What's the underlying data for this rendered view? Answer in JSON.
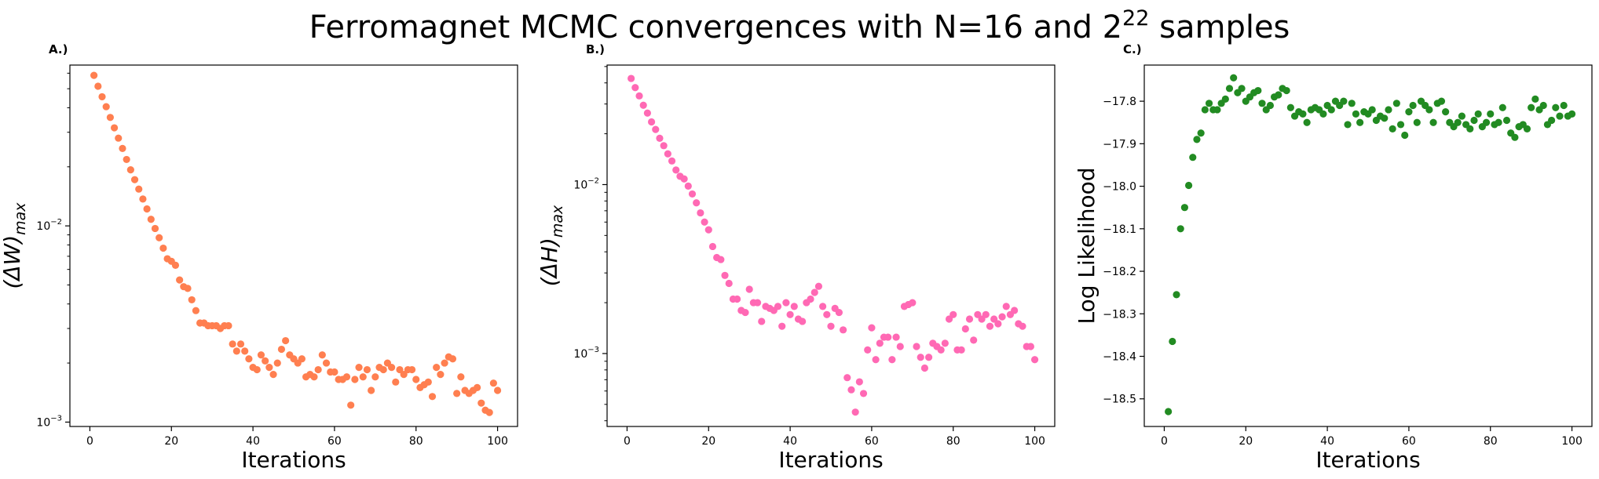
{
  "title": {
    "prefix": "Ferromagnet MCMC convergences with N=16 and 2",
    "sup": "22",
    "suffix": " samples"
  },
  "chart_data": [
    {
      "id": "A",
      "type": "scatter",
      "panel_label": "A.)",
      "xlabel": "Iterations",
      "ylabel_base": "(ΔW)",
      "ylabel_sub": "max",
      "yscale": "log",
      "xlim": [
        -4.9,
        104.9
      ],
      "ylim": [
        0.00095,
        0.066
      ],
      "xticks": [
        0,
        20,
        40,
        60,
        80,
        100
      ],
      "yticks": [
        {
          "value": 0.001,
          "base": "10",
          "exp": "−3"
        },
        {
          "value": 0.01,
          "base": "10",
          "exp": "−2"
        }
      ],
      "color": "#ff7f50",
      "x": [
        1,
        2,
        3,
        4,
        5,
        6,
        7,
        8,
        9,
        10,
        11,
        12,
        13,
        14,
        15,
        16,
        17,
        18,
        19,
        20,
        21,
        22,
        23,
        24,
        25,
        26,
        27,
        28,
        29,
        30,
        31,
        32,
        33,
        34,
        35,
        36,
        37,
        38,
        39,
        40,
        41,
        42,
        43,
        44,
        45,
        46,
        47,
        48,
        49,
        50,
        51,
        52,
        53,
        54,
        55,
        56,
        57,
        58,
        59,
        60,
        61,
        62,
        63,
        64,
        65,
        66,
        67,
        68,
        69,
        70,
        71,
        72,
        73,
        74,
        75,
        76,
        77,
        78,
        79,
        80,
        81,
        82,
        83,
        84,
        85,
        86,
        87,
        88,
        89,
        90,
        91,
        92,
        93,
        94,
        95,
        96,
        97,
        98,
        99,
        100
      ],
      "y": [
        0.0585,
        0.0515,
        0.0455,
        0.0405,
        0.0357,
        0.0316,
        0.028,
        0.0248,
        0.0218,
        0.0193,
        0.0172,
        0.0154,
        0.0137,
        0.0122,
        0.0108,
        0.0097,
        0.0087,
        0.0077,
        0.0068,
        0.0066,
        0.0063,
        0.0053,
        0.0049,
        0.0048,
        0.0042,
        0.0037,
        0.0032,
        0.0032,
        0.0031,
        0.0031,
        0.0031,
        0.003,
        0.0031,
        0.0031,
        0.0025,
        0.0023,
        0.0025,
        0.0023,
        0.0021,
        0.0019,
        0.00185,
        0.0022,
        0.00205,
        0.0019,
        0.00175,
        0.002,
        0.00235,
        0.0026,
        0.0022,
        0.0021,
        0.002,
        0.0021,
        0.0017,
        0.00175,
        0.0017,
        0.00185,
        0.0022,
        0.002,
        0.0018,
        0.0018,
        0.00165,
        0.00165,
        0.0017,
        0.00122,
        0.00165,
        0.0019,
        0.0017,
        0.00185,
        0.00145,
        0.0017,
        0.0019,
        0.00185,
        0.002,
        0.0019,
        0.0016,
        0.00185,
        0.00175,
        0.00185,
        0.00185,
        0.00165,
        0.0015,
        0.00155,
        0.0016,
        0.00135,
        0.0019,
        0.00175,
        0.002,
        0.00215,
        0.0021,
        0.0014,
        0.0017,
        0.00145,
        0.0014,
        0.00145,
        0.0015,
        0.00125,
        0.00115,
        0.00112,
        0.00158,
        0.00145
      ]
    },
    {
      "id": "B",
      "type": "scatter",
      "panel_label": "B.)",
      "xlabel": "Iterations",
      "ylabel_base": "(ΔH)",
      "ylabel_sub": "max",
      "yscale": "log",
      "xlim": [
        -4.9,
        104.9
      ],
      "ylim": [
        0.00037,
        0.051
      ],
      "xticks": [
        0,
        20,
        40,
        60,
        80,
        100
      ],
      "yticks": [
        {
          "value": 0.001,
          "base": "10",
          "exp": "−3"
        },
        {
          "value": 0.01,
          "base": "10",
          "exp": "−2"
        }
      ],
      "color": "#ff69b4",
      "x": [
        1,
        2,
        3,
        4,
        5,
        6,
        7,
        8,
        9,
        10,
        11,
        12,
        13,
        14,
        15,
        16,
        17,
        18,
        19,
        20,
        21,
        22,
        23,
        24,
        25,
        26,
        27,
        28,
        29,
        30,
        31,
        32,
        33,
        34,
        35,
        36,
        37,
        38,
        39,
        40,
        41,
        42,
        43,
        44,
        45,
        46,
        47,
        48,
        49,
        50,
        51,
        52,
        53,
        54,
        55,
        56,
        57,
        58,
        59,
        60,
        61,
        62,
        63,
        64,
        65,
        66,
        67,
        68,
        69,
        70,
        71,
        72,
        73,
        74,
        75,
        76,
        77,
        78,
        79,
        80,
        81,
        82,
        83,
        84,
        85,
        86,
        87,
        88,
        89,
        90,
        91,
        92,
        93,
        94,
        95,
        96,
        97,
        98,
        99,
        100
      ],
      "y": [
        0.0425,
        0.0375,
        0.0335,
        0.0295,
        0.0265,
        0.0235,
        0.0212,
        0.0188,
        0.017,
        0.0152,
        0.0138,
        0.0122,
        0.0112,
        0.0108,
        0.0098,
        0.0088,
        0.0078,
        0.0068,
        0.006,
        0.0054,
        0.0043,
        0.0037,
        0.0036,
        0.0029,
        0.0026,
        0.0021,
        0.0021,
        0.0018,
        0.00175,
        0.0024,
        0.002,
        0.002,
        0.00155,
        0.0019,
        0.00185,
        0.0018,
        0.0019,
        0.00145,
        0.002,
        0.0017,
        0.0019,
        0.0016,
        0.00155,
        0.002,
        0.0021,
        0.0023,
        0.0025,
        0.0019,
        0.0017,
        0.00145,
        0.00185,
        0.00175,
        0.00138,
        0.00072,
        0.00061,
        0.00045,
        0.00068,
        0.00058,
        0.00105,
        0.00142,
        0.00092,
        0.00115,
        0.00125,
        0.00125,
        0.00092,
        0.00125,
        0.0011,
        0.0019,
        0.00195,
        0.002,
        0.0011,
        0.00095,
        0.00082,
        0.00095,
        0.00115,
        0.0011,
        0.00105,
        0.00115,
        0.0016,
        0.0017,
        0.00105,
        0.00105,
        0.0014,
        0.0016,
        0.0012,
        0.0017,
        0.0016,
        0.0017,
        0.00145,
        0.0016,
        0.0015,
        0.00165,
        0.0019,
        0.0017,
        0.0018,
        0.0015,
        0.00145,
        0.0011,
        0.0011,
        0.00092
      ]
    },
    {
      "id": "C",
      "type": "scatter",
      "panel_label": "C.)",
      "xlabel": "Iterations",
      "ylabel": "Log Likelihood",
      "yscale": "linear",
      "xlim": [
        -4.9,
        104.9
      ],
      "ylim": [
        -18.565,
        -17.715
      ],
      "xticks": [
        0,
        20,
        40,
        60,
        80,
        100
      ],
      "yticks": [
        -18.5,
        -18.4,
        -18.3,
        -18.2,
        -18.1,
        -18.0,
        -17.9,
        -17.8
      ],
      "yticklabels": [
        "−18.5",
        "−18.4",
        "−18.3",
        "−18.2",
        "−18.1",
        "−18.0",
        "−17.9",
        "−17.8"
      ],
      "color": "#228b22",
      "x": [
        1,
        2,
        3,
        4,
        5,
        6,
        7,
        8,
        9,
        10,
        11,
        12,
        13,
        14,
        15,
        16,
        17,
        18,
        19,
        20,
        21,
        22,
        23,
        24,
        25,
        26,
        27,
        28,
        29,
        30,
        31,
        32,
        33,
        34,
        35,
        36,
        37,
        38,
        39,
        40,
        41,
        42,
        43,
        44,
        45,
        46,
        47,
        48,
        49,
        50,
        51,
        52,
        53,
        54,
        55,
        56,
        57,
        58,
        59,
        60,
        61,
        62,
        63,
        64,
        65,
        66,
        67,
        68,
        69,
        70,
        71,
        72,
        73,
        74,
        75,
        76,
        77,
        78,
        79,
        80,
        81,
        82,
        83,
        84,
        85,
        86,
        87,
        88,
        89,
        90,
        91,
        92,
        93,
        94,
        95,
        96,
        97,
        98,
        99,
        100
      ],
      "y": [
        -18.53,
        -18.365,
        -18.255,
        -18.1,
        -18.05,
        -17.998,
        -17.932,
        -17.89,
        -17.875,
        -17.82,
        -17.805,
        -17.82,
        -17.82,
        -17.805,
        -17.795,
        -17.77,
        -17.745,
        -17.78,
        -17.77,
        -17.8,
        -17.79,
        -17.78,
        -17.775,
        -17.805,
        -17.82,
        -17.81,
        -17.79,
        -17.785,
        -17.77,
        -17.775,
        -17.815,
        -17.835,
        -17.825,
        -17.83,
        -17.85,
        -17.82,
        -17.815,
        -17.82,
        -17.83,
        -17.81,
        -17.82,
        -17.8,
        -17.81,
        -17.8,
        -17.855,
        -17.805,
        -17.83,
        -17.85,
        -17.825,
        -17.83,
        -17.82,
        -17.845,
        -17.835,
        -17.84,
        -17.82,
        -17.865,
        -17.805,
        -17.855,
        -17.88,
        -17.825,
        -17.81,
        -17.85,
        -17.8,
        -17.81,
        -17.82,
        -17.85,
        -17.805,
        -17.8,
        -17.825,
        -17.85,
        -17.86,
        -17.85,
        -17.835,
        -17.855,
        -17.865,
        -17.845,
        -17.83,
        -17.86,
        -17.85,
        -17.83,
        -17.855,
        -17.85,
        -17.815,
        -17.845,
        -17.875,
        -17.885,
        -17.86,
        -17.855,
        -17.865,
        -17.815,
        -17.795,
        -17.82,
        -17.81,
        -17.855,
        -17.845,
        -17.815,
        -17.835,
        -17.81,
        -17.835,
        -17.83
      ]
    }
  ]
}
